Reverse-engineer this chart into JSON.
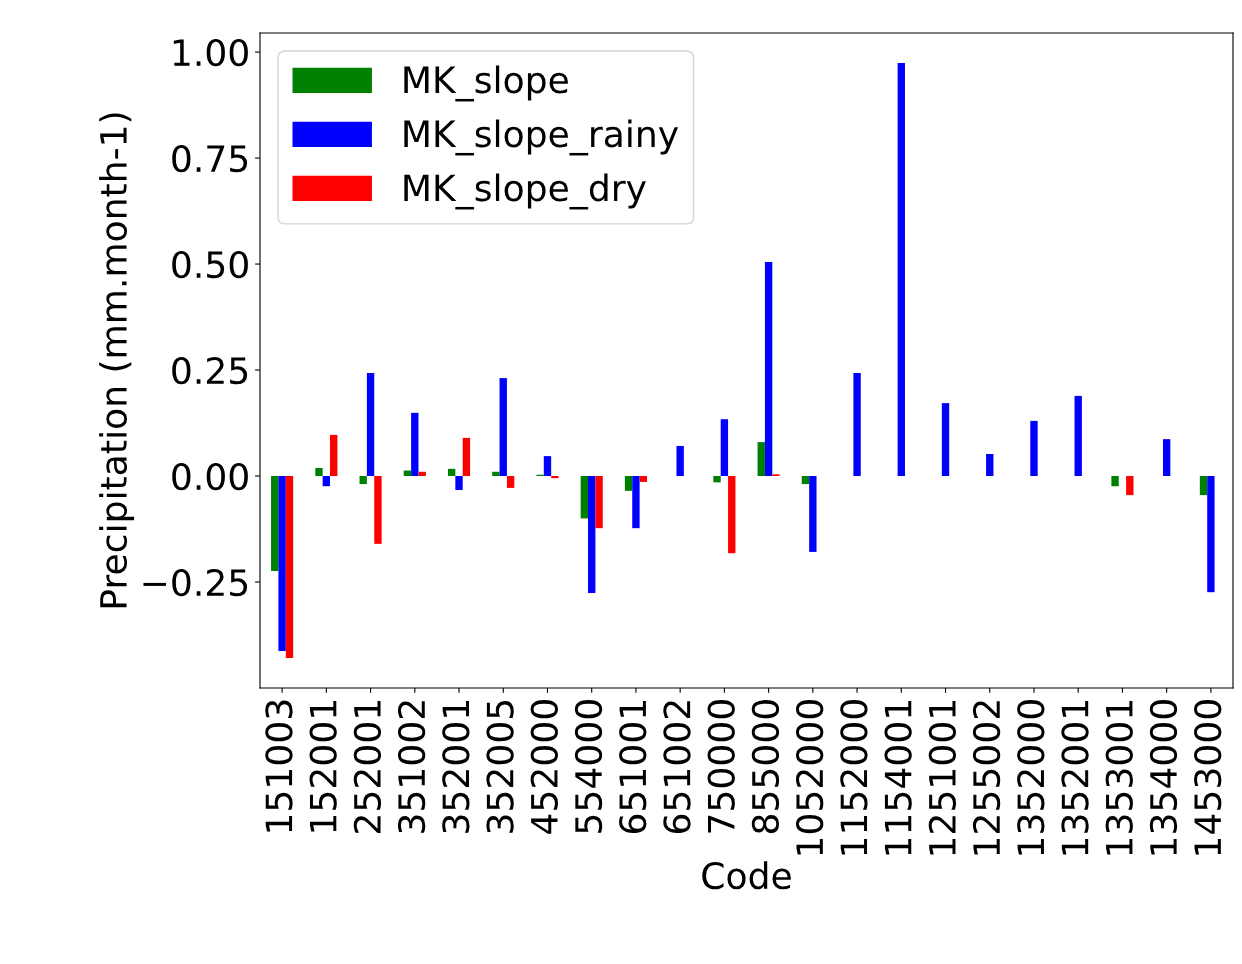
{
  "chart_data": {
    "type": "bar",
    "xlabel": "Code",
    "ylabel": "Precipitation (mm.month-1)",
    "categories": [
      "151003",
      "152001",
      "252001",
      "351002",
      "352001",
      "352005",
      "452000",
      "554000",
      "651001",
      "651002",
      "750000",
      "855000",
      "1052000",
      "1152000",
      "1154001",
      "1251001",
      "1255002",
      "1352000",
      "1352001",
      "1353001",
      "1354000",
      "1453000"
    ],
    "series": [
      {
        "name": "MK_slope",
        "color": "#008000",
        "values": [
          -0.224,
          0.019,
          -0.019,
          0.013,
          0.017,
          0.01,
          0.003,
          -0.1,
          -0.035,
          0,
          -0.015,
          0.08,
          -0.019,
          0,
          0,
          0,
          0,
          0,
          0,
          -0.024,
          0,
          -0.045
        ]
      },
      {
        "name": "MK_slope_rainy",
        "color": "#0000ff",
        "values": [
          -0.413,
          -0.024,
          0.243,
          0.149,
          -0.033,
          0.231,
          0.047,
          -0.276,
          -0.123,
          0.071,
          0.134,
          0.505,
          -0.179,
          0.243,
          0.974,
          0.172,
          0.052,
          0.13,
          0.189,
          0,
          0.087,
          -0.274
        ]
      },
      {
        "name": "MK_slope_dry",
        "color": "#ff0000",
        "values": [
          -0.429,
          0.097,
          -0.16,
          0.01,
          0.09,
          -0.028,
          -0.005,
          -0.123,
          -0.014,
          0,
          -0.182,
          0.004,
          0,
          0,
          0,
          0,
          0,
          0,
          0,
          -0.045,
          0,
          0
        ]
      }
    ],
    "ylim": [
      -0.5,
      1.045
    ],
    "yticks": [
      {
        "value": -0.25,
        "label": "−0.25"
      },
      {
        "value": 0,
        "label": "0.00"
      },
      {
        "value": 0.25,
        "label": "0.25"
      },
      {
        "value": 0.5,
        "label": "0.50"
      },
      {
        "value": 0.75,
        "label": "0.75"
      },
      {
        "value": 1.0,
        "label": "1.00"
      }
    ],
    "legend": "top left",
    "grid": false
  }
}
